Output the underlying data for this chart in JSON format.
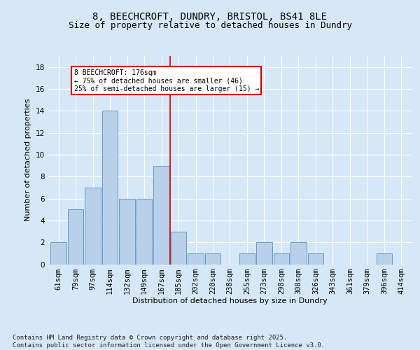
{
  "title": "8, BEECHCROFT, DUNDRY, BRISTOL, BS41 8LE",
  "subtitle": "Size of property relative to detached houses in Dundry",
  "xlabel": "Distribution of detached houses by size in Dundry",
  "ylabel": "Number of detached properties",
  "bins": [
    "61sqm",
    "79sqm",
    "97sqm",
    "114sqm",
    "132sqm",
    "149sqm",
    "167sqm",
    "185sqm",
    "202sqm",
    "220sqm",
    "238sqm",
    "255sqm",
    "273sqm",
    "290sqm",
    "308sqm",
    "326sqm",
    "343sqm",
    "361sqm",
    "379sqm",
    "396sqm",
    "414sqm"
  ],
  "values": [
    2,
    5,
    7,
    14,
    6,
    6,
    9,
    3,
    1,
    1,
    0,
    1,
    2,
    1,
    2,
    1,
    0,
    0,
    0,
    1,
    0
  ],
  "bar_color": "#b8d0e8",
  "bar_edge_color": "#6699cc",
  "annotation_text": "8 BEECHCROFT: 176sqm\n← 75% of detached houses are smaller (46)\n25% of semi-detached houses are larger (15) →",
  "annotation_box_color": "#ffffff",
  "annotation_box_edge_color": "#cc0000",
  "vline_color": "#cc0000",
  "vline_x_index": 6.5,
  "ylim": [
    0,
    19
  ],
  "yticks": [
    0,
    2,
    4,
    6,
    8,
    10,
    12,
    14,
    16,
    18
  ],
  "footer_text": "Contains HM Land Registry data © Crown copyright and database right 2025.\nContains public sector information licensed under the Open Government Licence v3.0.",
  "bg_color": "#d6e8f7",
  "plot_bg_color": "#d6e8f7",
  "title_fontsize": 10,
  "subtitle_fontsize": 9,
  "axis_fontsize": 8,
  "tick_fontsize": 7.5,
  "footer_fontsize": 6.5
}
